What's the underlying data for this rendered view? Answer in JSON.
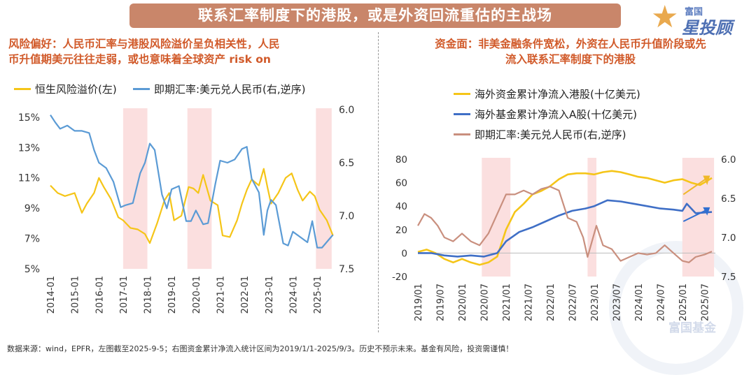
{
  "banner_title": "联系汇率制度下的港股，或是外资回流重估的主战场",
  "logo": {
    "top": "富国",
    "main": "星投顾"
  },
  "left_subtitle": [
    "风险偏好：人民币汇率与港股风险溢价呈负相关性，人民",
    "币升值期美元往往走弱，或也意味着全球资产 risk on"
  ],
  "right_subtitle": [
    "资金面：非美金融条件宽松，外资在人民币升值阶段或先",
    "流入联系汇率制度下的港股"
  ],
  "footer": "数据来源：wind，EPFR，左图截至2025-9-5；右图资金累计净流入统计区间为2019/1/1-2025/9/3。历史不预示未来。基金有风险，投资需谨慎！",
  "watermark": "富国基金",
  "colors": {
    "yellow": "#f5c518",
    "blue": "#5b9bd5",
    "darkblue": "#3f6fc6",
    "brown": "#c98f7e",
    "shade": "#fbdfdf",
    "accent": "#d15a2a"
  },
  "chart_data": [
    {
      "type": "line",
      "legend": [
        "恒生风险溢价(左)",
        "即期汇率:美元兑人民币(右,逆序)"
      ],
      "x_ticks": [
        "2014-01",
        "2015-01",
        "2016-01",
        "2017-01",
        "2018-01",
        "2019-01",
        "2020-01",
        "2021-01",
        "2022-01",
        "2023-01",
        "2024-01",
        "2025-01"
      ],
      "y_left_ticks": [
        "15%",
        "13%",
        "11%",
        "9%",
        "7%",
        "5%"
      ],
      "y_left_range": [
        5,
        15.5
      ],
      "y_right_ticks": [
        "6.0",
        "6.5",
        "7.0",
        "7.5"
      ],
      "y_right_range": [
        6.0,
        7.5
      ],
      "y_right_inverted": true,
      "shaded_periods": [
        [
          2017.0,
          2018.0
        ],
        [
          2019.65,
          2020.65
        ],
        [
          2024.95,
          2025.6
        ]
      ],
      "series": [
        {
          "name": "恒生风险溢价(左)",
          "axis": "left",
          "x": [
            2014.0,
            2014.3,
            2014.6,
            2015.0,
            2015.3,
            2015.5,
            2015.8,
            2016.0,
            2016.2,
            2016.5,
            2016.8,
            2017.0,
            2017.3,
            2017.6,
            2017.9,
            2018.1,
            2018.4,
            2018.7,
            2018.9,
            2019.1,
            2019.4,
            2019.7,
            2019.9,
            2020.1,
            2020.3,
            2020.6,
            2020.9,
            2021.1,
            2021.4,
            2021.7,
            2021.9,
            2022.1,
            2022.3,
            2022.6,
            2022.8,
            2022.95,
            2023.1,
            2023.4,
            2023.7,
            2023.95,
            2024.2,
            2024.4,
            2024.7,
            2024.9,
            2025.1,
            2025.4,
            2025.65
          ],
          "y": [
            10.5,
            10.0,
            9.8,
            10.0,
            8.7,
            9.3,
            10.0,
            11.0,
            10.4,
            9.6,
            8.4,
            8.2,
            7.7,
            7.6,
            7.3,
            6.7,
            8.0,
            9.5,
            10.0,
            8.2,
            8.5,
            10.4,
            10.3,
            10.0,
            11.2,
            9.5,
            9.2,
            7.2,
            7.1,
            8.2,
            9.3,
            10.2,
            10.9,
            10.5,
            11.6,
            10.4,
            9.3,
            10.0,
            11.0,
            11.3,
            10.2,
            9.5,
            10.1,
            9.8,
            8.9,
            8.2,
            7.2
          ]
        },
        {
          "name": "即期汇率:美元兑人民币(右,逆序)",
          "axis": "right",
          "x": [
            2014.0,
            2014.2,
            2014.4,
            2014.7,
            2015.0,
            2015.3,
            2015.6,
            2015.8,
            2016.0,
            2016.3,
            2016.6,
            2016.9,
            2017.1,
            2017.4,
            2017.7,
            2017.9,
            2018.1,
            2018.3,
            2018.6,
            2018.8,
            2019.0,
            2019.3,
            2019.6,
            2019.8,
            2020.0,
            2020.3,
            2020.5,
            2020.8,
            2021.0,
            2021.3,
            2021.6,
            2021.9,
            2022.1,
            2022.3,
            2022.6,
            2022.8,
            2022.95,
            2023.1,
            2023.3,
            2023.6,
            2023.8,
            2024.0,
            2024.3,
            2024.6,
            2024.8,
            2025.0,
            2025.2,
            2025.5,
            2025.65
          ],
          "y": [
            6.05,
            6.12,
            6.18,
            6.15,
            6.2,
            6.2,
            6.22,
            6.38,
            6.5,
            6.55,
            6.68,
            6.92,
            6.9,
            6.88,
            6.6,
            6.5,
            6.32,
            6.38,
            6.8,
            6.93,
            6.75,
            6.72,
            7.05,
            7.05,
            6.95,
            7.08,
            7.07,
            6.7,
            6.48,
            6.5,
            6.47,
            6.37,
            6.35,
            6.65,
            6.78,
            7.18,
            6.95,
            6.85,
            6.9,
            7.26,
            7.28,
            7.15,
            7.2,
            7.25,
            7.05,
            7.3,
            7.3,
            7.22,
            7.18
          ]
        }
      ]
    },
    {
      "type": "line",
      "legend": [
        "海外资金累计净流入港股(十亿美元)",
        "海外基金累计净流入A股(十亿美元)",
        "即期汇率:美元兑人民币(右,逆序)"
      ],
      "x_ticks": [
        "2019/01",
        "2019/07",
        "2020/01",
        "2020/07",
        "2021/01",
        "2021/07",
        "2022/01",
        "2022/07",
        "2023/01",
        "2023/07",
        "2024/01",
        "2024/07",
        "2025/01",
        "2025/07"
      ],
      "y_left_ticks": [
        "80",
        "60",
        "40",
        "20",
        "0",
        "-20"
      ],
      "y_left_range": [
        -20,
        80
      ],
      "y_right_ticks": [
        "6.0",
        "6.5",
        "7.0",
        "7.5"
      ],
      "y_right_range": [
        6.0,
        7.5
      ],
      "y_right_inverted": true,
      "shaded_periods": [
        [
          2020.45,
          2021.1
        ],
        [
          2022.85,
          2023.05
        ],
        [
          2025.0,
          2025.72
        ]
      ],
      "series": [
        {
          "name": "海外资金累计净流入港股(十亿美元)",
          "axis": "left",
          "x": [
            2019.0,
            2019.2,
            2019.4,
            2019.6,
            2019.8,
            2020.0,
            2020.2,
            2020.4,
            2020.6,
            2020.8,
            2021.0,
            2021.2,
            2021.4,
            2021.6,
            2021.8,
            2022.0,
            2022.2,
            2022.4,
            2022.6,
            2022.8,
            2023.0,
            2023.2,
            2023.4,
            2023.6,
            2023.8,
            2024.0,
            2024.2,
            2024.4,
            2024.6,
            2024.8,
            2025.0,
            2025.2,
            2025.4,
            2025.67
          ],
          "y": [
            1,
            3,
            0,
            -5,
            -8,
            -5,
            -8,
            -10,
            -8,
            -3,
            20,
            35,
            42,
            50,
            53,
            57,
            63,
            67,
            68,
            68,
            67,
            69,
            70,
            69,
            67,
            65,
            64,
            62,
            60,
            62,
            63,
            60,
            58,
            64
          ]
        },
        {
          "name": "海外基金累计净流入A股(十亿美元)",
          "axis": "left",
          "x": [
            2019.0,
            2019.3,
            2019.6,
            2019.9,
            2020.2,
            2020.5,
            2020.8,
            2021.0,
            2021.3,
            2021.6,
            2021.9,
            2022.2,
            2022.5,
            2022.8,
            2023.0,
            2023.3,
            2023.6,
            2023.9,
            2024.2,
            2024.5,
            2024.8,
            2025.0,
            2025.1,
            2025.3,
            2025.67
          ],
          "y": [
            0,
            0,
            -2,
            -3,
            -2,
            -3,
            0,
            10,
            18,
            22,
            27,
            32,
            36,
            38,
            40,
            45,
            44,
            42,
            40,
            38,
            37,
            36,
            42,
            34,
            35
          ]
        },
        {
          "name": "即期汇率:美元兑人民币(右,逆序)",
          "axis": "right",
          "x": [
            2019.0,
            2019.15,
            2019.3,
            2019.45,
            2019.6,
            2019.8,
            2020.0,
            2020.2,
            2020.4,
            2020.6,
            2020.8,
            2021.0,
            2021.2,
            2021.4,
            2021.6,
            2021.8,
            2022.0,
            2022.2,
            2022.4,
            2022.6,
            2022.75,
            2022.85,
            2022.95,
            2023.05,
            2023.2,
            2023.4,
            2023.6,
            2023.8,
            2024.0,
            2024.2,
            2024.4,
            2024.6,
            2024.8,
            2025.0,
            2025.15,
            2025.3,
            2025.5,
            2025.67
          ],
          "y": [
            6.85,
            6.7,
            6.75,
            6.85,
            7.0,
            7.05,
            6.95,
            7.05,
            7.1,
            6.95,
            6.7,
            6.45,
            6.45,
            6.4,
            6.45,
            6.38,
            6.35,
            6.4,
            6.75,
            6.8,
            7.0,
            7.25,
            7.05,
            6.85,
            7.1,
            7.15,
            7.3,
            7.25,
            7.2,
            7.22,
            7.2,
            7.1,
            7.2,
            7.3,
            7.32,
            7.25,
            7.22,
            7.18
          ]
        }
      ]
    }
  ]
}
